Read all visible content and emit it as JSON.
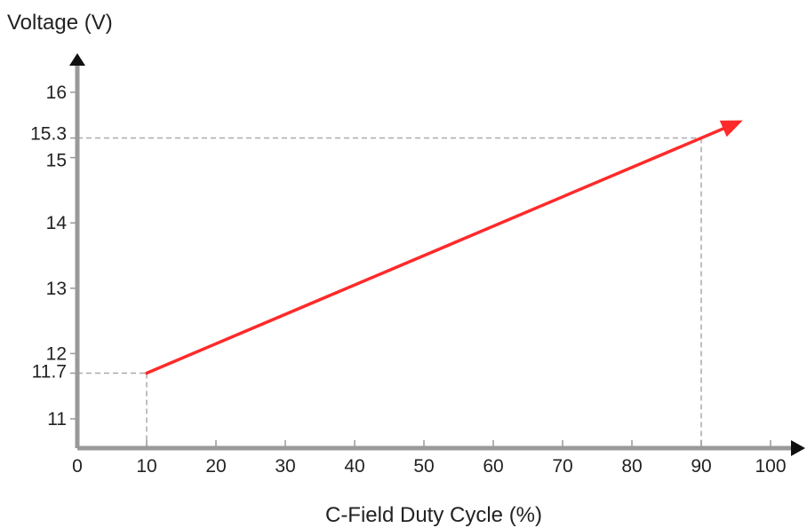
{
  "chart_data": {
    "type": "line",
    "title": "",
    "xlabel": "C-Field Duty Cycle (%)",
    "ylabel": "Voltage (V)",
    "xlim": [
      0,
      100
    ],
    "ylim": [
      10.5,
      16.5
    ],
    "x_ticks": [
      0,
      10,
      20,
      30,
      40,
      50,
      60,
      70,
      80,
      90,
      100
    ],
    "x_tick_labels": [
      "0",
      "10",
      "20",
      "30",
      "40",
      "50",
      "60",
      "70",
      "80",
      "90",
      "100"
    ],
    "y_ticks": [
      11,
      11.7,
      12,
      13,
      14,
      15,
      15.3,
      16
    ],
    "y_tick_labels": [
      "11",
      "11.7",
      "12",
      "13",
      "14",
      "15",
      "15.3",
      "16"
    ],
    "grid": false,
    "series": [
      {
        "x": [
          10,
          96
        ],
        "y": [
          11.7,
          15.57
        ],
        "color": "#ff2a2a",
        "arrow_head": true
      }
    ],
    "reference_lines": [
      {
        "x": 10,
        "y": 11.7
      },
      {
        "x": 90,
        "y": 15.3
      }
    ],
    "colors": {
      "axis": "#999999",
      "arrow": "#111111",
      "guide": "#aaaaaa",
      "line": "#ff2a2a"
    }
  }
}
